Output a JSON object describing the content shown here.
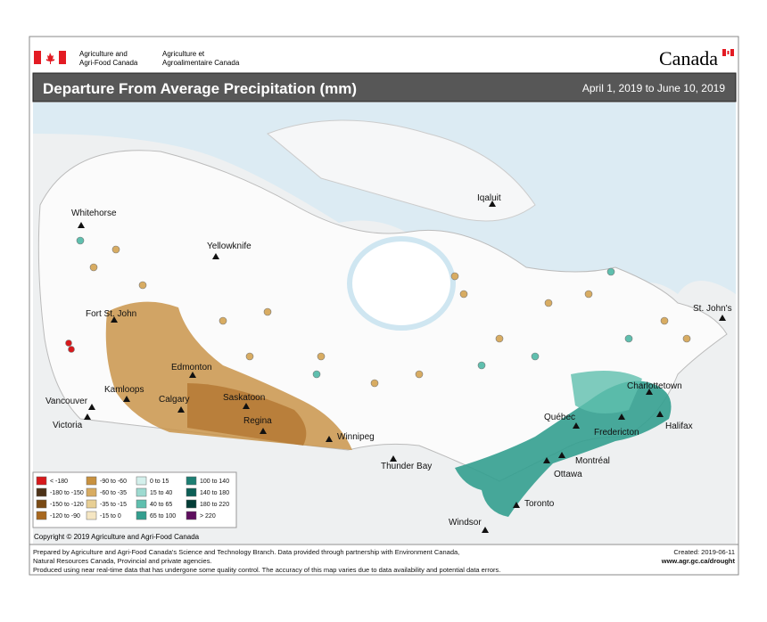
{
  "header": {
    "agency_en_1": "Agriculture and",
    "agency_en_2": "Agri-Food Canada",
    "agency_fr_1": "Agriculture et",
    "agency_fr_2": "Agroalimentaire Canada",
    "wordmark": "Canada"
  },
  "title_bar": {
    "title": "Departure From Average Precipitation (mm)",
    "period": "April 1, 2019 to June 10, 2019"
  },
  "cities": [
    "Whitehorse",
    "Yellowknife",
    "Iqaluit",
    "Fort St. John",
    "St. John's",
    "Edmonton",
    "Kamloops",
    "Vancouver",
    "Calgary",
    "Saskatoon",
    "Regina",
    "Victoria",
    "Winnipeg",
    "Thunder Bay",
    "Charlottetown",
    "Québec",
    "Fredericton",
    "Halifax",
    "Montréal",
    "Ottawa",
    "Toronto",
    "Windsor"
  ],
  "legend": [
    {
      "label": "< -180",
      "color": "#d7191c"
    },
    {
      "label": "-180 to -150",
      "color": "#4d3319"
    },
    {
      "label": "-150 to -120",
      "color": "#7a4a14"
    },
    {
      "label": "-120 to -90",
      "color": "#a8681f"
    },
    {
      "label": "-90 to -60",
      "color": "#c8913f"
    },
    {
      "label": "-60 to -35",
      "color": "#d8ac62"
    },
    {
      "label": "-35 to -15",
      "color": "#e8cf94"
    },
    {
      "label": "-15 to 0",
      "color": "#f5e6c3"
    },
    {
      "label": "0 to 15",
      "color": "#d4f0ec"
    },
    {
      "label": "15 to 40",
      "color": "#9ddad0"
    },
    {
      "label": "40 to 65",
      "color": "#5fbfae"
    },
    {
      "label": "65 to 100",
      "color": "#339e8f"
    },
    {
      "label": "100 to 140",
      "color": "#1d7f73"
    },
    {
      "label": "140 to 180",
      "color": "#0c5f56"
    },
    {
      "label": "180 to 220",
      "color": "#033d37"
    },
    {
      "label": "> 220",
      "color": "#5e0e5e"
    }
  ],
  "copyright": "Copyright © 2019 Agriculture and Agri-Food Canada",
  "footer": {
    "lines": [
      "Prepared by Agriculture and Agri-Food Canada's Science and Technology Branch. Data provided through partnership with Environment Canada,",
      "Natural Resources Canada, Provincial and private agencies.",
      "Produced using near real-time data that has undergone some quality control. The accuracy of this map varies due to data availability and potential data errors."
    ],
    "created": "Created: 2019-06-11",
    "url": "www.agr.gc.ca/drought"
  }
}
